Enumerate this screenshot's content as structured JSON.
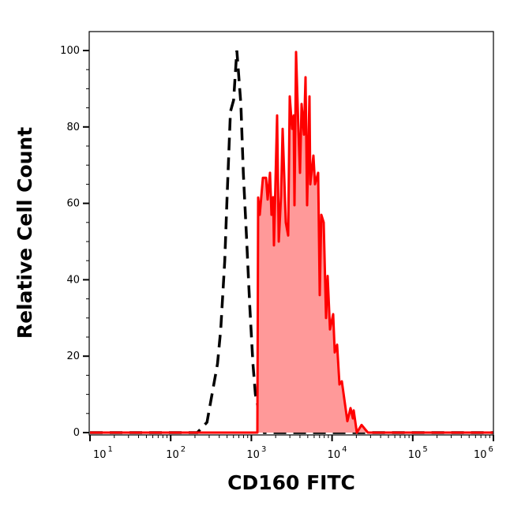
{
  "chart_data": {
    "type": "area",
    "title": "",
    "xlabel": "CD160 FITC",
    "ylabel": "Relative Cell Count",
    "x_scale": "log",
    "xlim": [
      10,
      1000000
    ],
    "ylim": [
      -0.6,
      105
    ],
    "x_ticks": [
      {
        "base": "10",
        "exp": "1",
        "value": 10
      },
      {
        "base": "10",
        "exp": "2",
        "value": 100
      },
      {
        "base": "10",
        "exp": "3",
        "value": 1000
      },
      {
        "base": "10",
        "exp": "4",
        "value": 10000
      },
      {
        "base": "10",
        "exp": "5",
        "value": 100000
      },
      {
        "base": "10",
        "exp": "6",
        "value": 1000000
      }
    ],
    "y_ticks": [
      0,
      20,
      40,
      60,
      80,
      100
    ],
    "y_minor_step": 5,
    "grid": false,
    "series": [
      {
        "style": "dashed-line",
        "color": "#000000",
        "x": [
          10,
          214,
          282,
          380,
          417,
          468,
          501,
          550,
          603,
          661,
          741,
          794,
          871,
          955,
          1047,
          1122,
          1288,
          1445,
          1000000
        ],
        "y": [
          0,
          0,
          2.7,
          18,
          27,
          45,
          62,
          84,
          87,
          100,
          86,
          68,
          51,
          33,
          18,
          10,
          4,
          0,
          0
        ]
      },
      {
        "style": "filled-area",
        "color": "#ff0000",
        "fill": "#ff9999",
        "x": [
          10,
          1186,
          1213,
          1271,
          1390,
          1521,
          1592,
          1702,
          1778,
          1862,
          1905,
          2084,
          2183,
          2333,
          2438,
          2673,
          2858,
          2992,
          3199,
          3342,
          3420,
          3581,
          3828,
          4009,
          4188,
          4487,
          4688,
          4909,
          5248,
          5370,
          5875,
          6152,
          6730,
          7031,
          7362,
          7870,
          8433,
          8810,
          9441,
          10328,
          10789,
          11561,
          12359,
          13213,
          15488,
          16943,
          18113,
          18535,
          20277,
          23227,
          25410,
          27797,
          1000000
        ],
        "y": [
          0,
          0,
          61.5,
          57,
          66.7,
          66.7,
          61,
          68,
          57,
          61.6,
          49,
          83,
          50,
          62,
          79.5,
          55,
          51.6,
          88,
          79.5,
          83,
          59.5,
          99.6,
          79,
          68,
          86,
          78,
          93,
          59.5,
          88,
          65,
          72.5,
          65,
          68,
          36,
          57,
          55,
          30,
          41,
          27,
          31,
          21,
          23,
          12.6,
          13.4,
          3,
          6.4,
          3.7,
          5.8,
          0,
          2,
          1,
          0,
          0
        ]
      }
    ]
  }
}
